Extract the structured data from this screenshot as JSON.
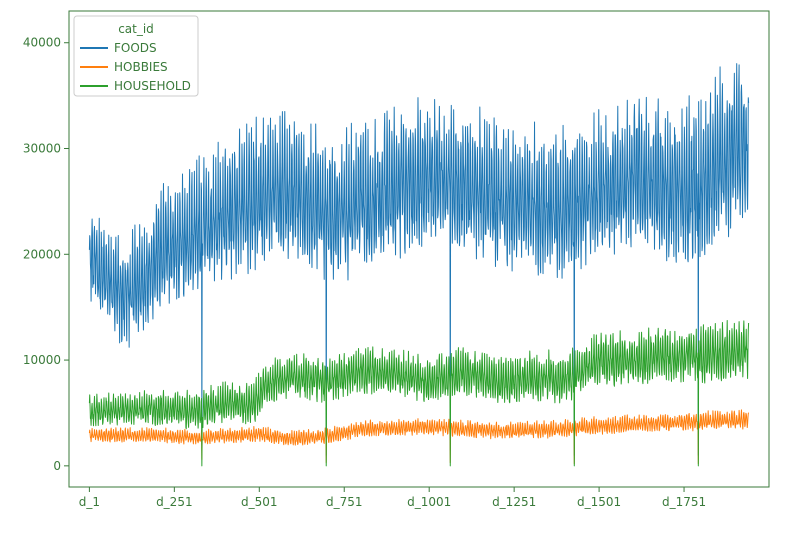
{
  "chart_data": {
    "type": "line",
    "title": "",
    "xlabel": "",
    "ylabel": "",
    "xlim": [
      -60,
      2000
    ],
    "ylim": [
      -2000,
      43000
    ],
    "n_days": 1941,
    "x_ticks": [
      {
        "pos": 0,
        "label": "d_1"
      },
      {
        "pos": 250,
        "label": "d_251"
      },
      {
        "pos": 500,
        "label": "d_501"
      },
      {
        "pos": 750,
        "label": "d_751"
      },
      {
        "pos": 1000,
        "label": "d_1001"
      },
      {
        "pos": 1250,
        "label": "d_1251"
      },
      {
        "pos": 1500,
        "label": "d_1501"
      },
      {
        "pos": 1750,
        "label": "d_1751"
      }
    ],
    "y_ticks": [
      {
        "value": 0,
        "label": "0"
      },
      {
        "value": 10000,
        "label": "10000"
      },
      {
        "value": 20000,
        "label": "20000"
      },
      {
        "value": 30000,
        "label": "30000"
      },
      {
        "value": 40000,
        "label": "40000"
      }
    ],
    "grid": false,
    "legend": {
      "title": "cat_id",
      "placement": "top-left"
    },
    "christmas_days": [
      331,
      697,
      1062,
      1427,
      1792
    ],
    "series": [
      {
        "name": "FOODS",
        "color": "#1f77b4",
        "trend": [
          [
            0,
            20000
          ],
          [
            60,
            17500
          ],
          [
            100,
            16000
          ],
          [
            150,
            17500
          ],
          [
            200,
            20000
          ],
          [
            300,
            22000
          ],
          [
            400,
            24000
          ],
          [
            500,
            25500
          ],
          [
            600,
            26000
          ],
          [
            700,
            24000
          ],
          [
            800,
            25000
          ],
          [
            900,
            26500
          ],
          [
            1000,
            28000
          ],
          [
            1100,
            27000
          ],
          [
            1200,
            25500
          ],
          [
            1300,
            25000
          ],
          [
            1400,
            24500
          ],
          [
            1500,
            26000
          ],
          [
            1600,
            27500
          ],
          [
            1700,
            26500
          ],
          [
            1800,
            27000
          ],
          [
            1850,
            29000
          ],
          [
            1940,
            30000
          ]
        ],
        "amplitude": [
          [
            0,
            3500
          ],
          [
            200,
            4500
          ],
          [
            500,
            5500
          ],
          [
            1000,
            5500
          ],
          [
            1500,
            5500
          ],
          [
            1940,
            6500
          ]
        ],
        "dips": [
          {
            "day": 331,
            "value": 2000
          },
          {
            "day": 697,
            "value": 1000
          },
          {
            "day": 1062,
            "value": 1500
          },
          {
            "day": 1427,
            "value": 1000
          },
          {
            "day": 1792,
            "value": 1000
          }
        ]
      },
      {
        "name": "HOBBIES",
        "color": "#ff7f0e",
        "trend": [
          [
            0,
            2900
          ],
          [
            200,
            2900
          ],
          [
            300,
            2700
          ],
          [
            500,
            3000
          ],
          [
            600,
            2600
          ],
          [
            700,
            2800
          ],
          [
            800,
            3500
          ],
          [
            1000,
            3700
          ],
          [
            1200,
            3300
          ],
          [
            1400,
            3500
          ],
          [
            1500,
            3800
          ],
          [
            1700,
            4100
          ],
          [
            1940,
            4400
          ]
        ],
        "amplitude": [
          [
            0,
            500
          ],
          [
            1000,
            600
          ],
          [
            1940,
            700
          ]
        ],
        "dips": [
          {
            "day": 331,
            "value": 600
          },
          {
            "day": 697,
            "value": 300
          },
          {
            "day": 1062,
            "value": 300
          },
          {
            "day": 1427,
            "value": 200
          },
          {
            "day": 1792,
            "value": 200
          }
        ]
      },
      {
        "name": "HOUSEHOLD",
        "color": "#2ca02c",
        "trend": [
          [
            0,
            5200
          ],
          [
            150,
            5500
          ],
          [
            300,
            5200
          ],
          [
            400,
            6000
          ],
          [
            480,
            5800
          ],
          [
            520,
            7800
          ],
          [
            600,
            8500
          ],
          [
            700,
            8000
          ],
          [
            800,
            9000
          ],
          [
            900,
            8800
          ],
          [
            1000,
            8000
          ],
          [
            1100,
            9000
          ],
          [
            1200,
            8000
          ],
          [
            1300,
            8500
          ],
          [
            1400,
            8200
          ],
          [
            1500,
            10000
          ],
          [
            1600,
            10000
          ],
          [
            1700,
            10500
          ],
          [
            1800,
            10500
          ],
          [
            1940,
            11000
          ]
        ],
        "amplitude": [
          [
            0,
            1100
          ],
          [
            500,
            1600
          ],
          [
            1000,
            1700
          ],
          [
            1940,
            2200
          ]
        ],
        "dips": [
          {
            "day": 331,
            "value": 0
          },
          {
            "day": 697,
            "value": 0
          },
          {
            "day": 1062,
            "value": 0
          },
          {
            "day": 1427,
            "value": 0
          },
          {
            "day": 1792,
            "value": 0
          }
        ]
      }
    ]
  }
}
